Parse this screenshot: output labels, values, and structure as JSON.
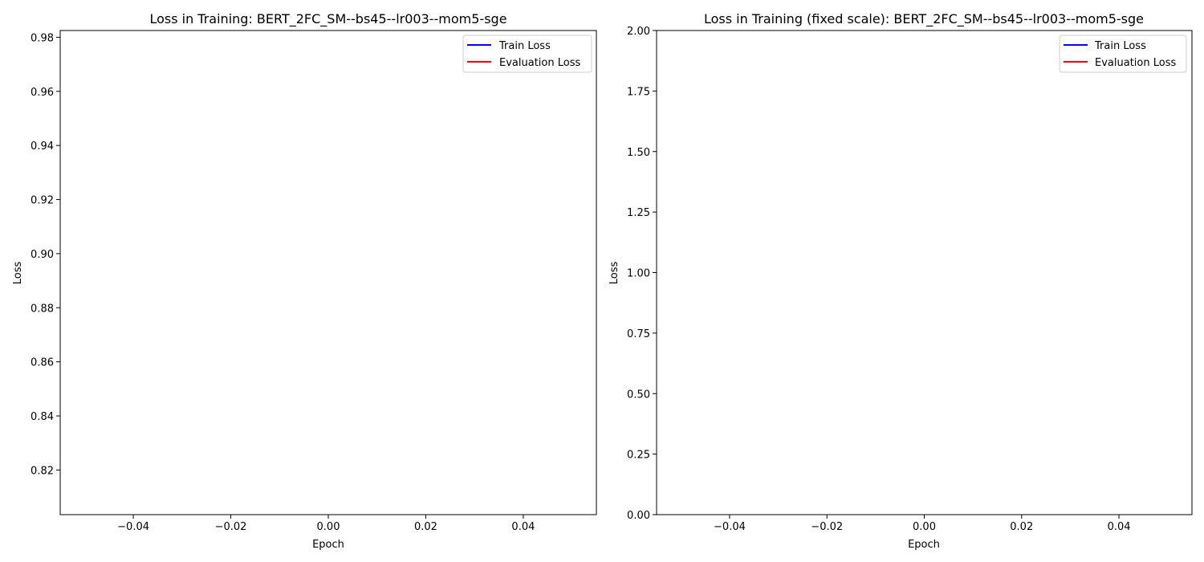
{
  "chart_data": [
    {
      "type": "line",
      "title": "Loss in Training: BERT_2FC_SM--bs45--lr003--mom5-sge",
      "xlabel": "Epoch",
      "ylabel": "Loss",
      "xlim": [
        -0.055,
        0.055
      ],
      "ylim": [
        0.8035,
        0.9825
      ],
      "x_ticks": [
        -0.04,
        -0.02,
        0.0,
        0.02,
        0.04
      ],
      "x_tick_labels": [
        "−0.04",
        "−0.02",
        "0.00",
        "0.02",
        "0.04"
      ],
      "y_ticks": [
        0.82,
        0.84,
        0.86,
        0.88,
        0.9,
        0.92,
        0.94,
        0.96,
        0.98
      ],
      "y_tick_labels": [
        "0.82",
        "0.84",
        "0.86",
        "0.88",
        "0.90",
        "0.92",
        "0.94",
        "0.96",
        "0.98"
      ],
      "grid": false,
      "legend_position": "top-right",
      "series": [
        {
          "name": "Train Loss",
          "color": "#0000ff",
          "x": [],
          "y": []
        },
        {
          "name": "Evaluation Loss",
          "color": "#ff0000",
          "x": [],
          "y": []
        }
      ]
    },
    {
      "type": "line",
      "title": "Loss in Training (fixed scale): BERT_2FC_SM--bs45--lr003--mom5-sge",
      "xlabel": "Epoch",
      "ylabel": "Loss",
      "xlim": [
        -0.055,
        0.055
      ],
      "ylim": [
        0.0,
        2.0
      ],
      "x_ticks": [
        -0.04,
        -0.02,
        0.0,
        0.02,
        0.04
      ],
      "x_tick_labels": [
        "−0.04",
        "−0.02",
        "0.00",
        "0.02",
        "0.04"
      ],
      "y_ticks": [
        0.0,
        0.25,
        0.5,
        0.75,
        1.0,
        1.25,
        1.5,
        1.75,
        2.0
      ],
      "y_tick_labels": [
        "0.00",
        "0.25",
        "0.50",
        "0.75",
        "1.00",
        "1.25",
        "1.50",
        "1.75",
        "2.00"
      ],
      "grid": false,
      "legend_position": "top-right",
      "series": [
        {
          "name": "Train Loss",
          "color": "#0000ff",
          "x": [],
          "y": []
        },
        {
          "name": "Evaluation Loss",
          "color": "#ff0000",
          "x": [],
          "y": []
        }
      ]
    }
  ]
}
